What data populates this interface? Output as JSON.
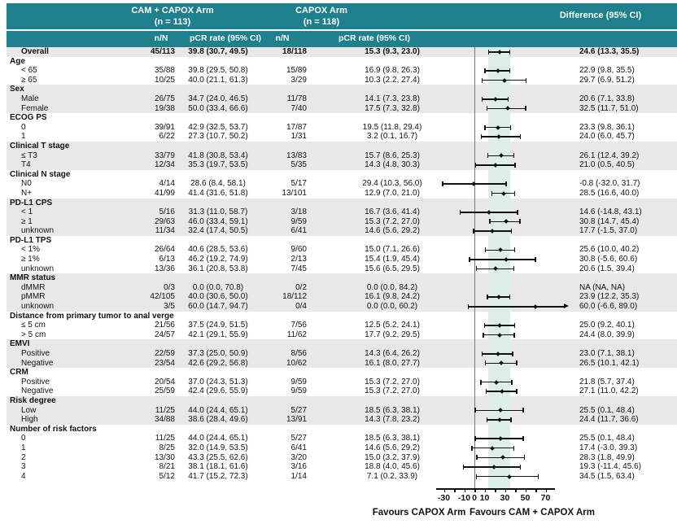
{
  "header": {
    "cam_title": "CAM + CAPOX Arm",
    "cam_n": "(n = 113)",
    "capox_title": "CAPOX Arm",
    "capox_n": "(n = 118)",
    "diff_title": "Difference (95% CI)",
    "sub_nn1": "n/N",
    "sub_pcr1": "pCR rate (95% CI)",
    "sub_nn2": "n/N",
    "sub_pcr2": "pCR rate (95% CI)"
  },
  "colors": {
    "header_teal": "#1E7F8D",
    "stripe_gray": "#E8E8E8",
    "band_green": "#DCEEE6",
    "zero_line_gray": "#777777",
    "ink": "#111111"
  },
  "chart_data": {
    "type": "forest",
    "x_axis": {
      "min": -30,
      "max": 70,
      "tick_step": 10,
      "labeled_ticks": [
        -30,
        -10,
        0,
        10,
        30,
        50,
        70
      ]
    },
    "zero_ref": 0,
    "shaded_band": [
      13.3,
      35.5
    ],
    "favours_left": "Favours CAPOX Arm",
    "favours_right": "Favours CAM + CAPOX Arm",
    "rows": [
      {
        "label": "Overall",
        "type": "data",
        "bold": true,
        "stripe": true,
        "cam_nn": "45/113",
        "cam_pcr": "39.8 (30.7, 49.5)",
        "cap_nn": "18/118",
        "cap_pcr": "15.3 (9.3, 23.0)",
        "diff": "24.6 (13.3, 35.5)",
        "est": 24.6,
        "lo": 13.3,
        "hi": 35.5
      },
      {
        "label": "Age",
        "type": "group",
        "stripe": false
      },
      {
        "label": "< 65",
        "type": "data",
        "stripe": false,
        "cam_nn": "35/88",
        "cam_pcr": "39.8 (29.5, 50.8)",
        "cap_nn": "15/89",
        "cap_pcr": "16.9 (9.8, 26.3)",
        "diff": "22.9 (9.8, 35.5)",
        "est": 22.9,
        "lo": 9.8,
        "hi": 35.5
      },
      {
        "label": "≥ 65",
        "type": "data",
        "stripe": false,
        "cam_nn": "10/25",
        "cam_pcr": "40.0 (21.1, 61.3)",
        "cap_nn": "3/29",
        "cap_pcr": "10.3 (2.2, 27.4)",
        "diff": "29.7 (6.9, 51.2)",
        "est": 29.7,
        "lo": 6.9,
        "hi": 51.2
      },
      {
        "label": "Sex",
        "type": "group",
        "stripe": true
      },
      {
        "label": "Male",
        "type": "data",
        "stripe": true,
        "cam_nn": "26/75",
        "cam_pcr": "34.7 (24.0, 46.5)",
        "cap_nn": "11/78",
        "cap_pcr": "14.1 (7.3, 23.8)",
        "diff": "20.6 (7.1, 33.8)",
        "est": 20.6,
        "lo": 7.1,
        "hi": 33.8
      },
      {
        "label": "Female",
        "type": "data",
        "stripe": true,
        "cam_nn": "19/38",
        "cam_pcr": "50.0 (33.4, 66.6)",
        "cap_nn": "7/40",
        "cap_pcr": "17.5 (7.3, 32.8)",
        "diff": "32.5 (11.7, 51.0)",
        "est": 32.5,
        "lo": 11.7,
        "hi": 51.0
      },
      {
        "label": "ECOG PS",
        "type": "group",
        "stripe": false
      },
      {
        "label": "0",
        "type": "data",
        "stripe": false,
        "cam_nn": "39/91",
        "cam_pcr": "42.9 (32.5, 53.7)",
        "cap_nn": "17/87",
        "cap_pcr": "19.5 (11.8, 29.4)",
        "diff": "23.3 (9.8, 36.1)",
        "est": 23.3,
        "lo": 9.8,
        "hi": 36.1
      },
      {
        "label": "1",
        "type": "data",
        "stripe": false,
        "cam_nn": "6/22",
        "cam_pcr": "27.3 (10.7, 50.2)",
        "cap_nn": "1/31",
        "cap_pcr": "3.2 (0.1, 16.7)",
        "diff": "24.0 (6.0, 45.7)",
        "est": 24.0,
        "lo": 6.0,
        "hi": 45.7
      },
      {
        "label": "Clinical T stage",
        "type": "group",
        "stripe": true
      },
      {
        "label": "≤ T3",
        "type": "data",
        "stripe": true,
        "cam_nn": "33/79",
        "cam_pcr": "41.8 (30.8, 53.4)",
        "cap_nn": "13/83",
        "cap_pcr": "15.7 (8.6, 25.3)",
        "diff": "26.1 (12.4, 39.2)",
        "est": 26.1,
        "lo": 12.4,
        "hi": 39.2
      },
      {
        "label": "T4",
        "type": "data",
        "stripe": true,
        "cam_nn": "12/34",
        "cam_pcr": "35.3 (19.7, 53.5)",
        "cap_nn": "5/35",
        "cap_pcr": "14.3 (4.8, 30.3)",
        "diff": "21.0 (0.5, 40.5)",
        "est": 21.0,
        "lo": 0.5,
        "hi": 40.5
      },
      {
        "label": "Clinical N stage",
        "type": "group",
        "stripe": false
      },
      {
        "label": "N0",
        "type": "data",
        "stripe": false,
        "cam_nn": "4/14",
        "cam_pcr": "28.6 (8.4, 58.1)",
        "cap_nn": "5/17",
        "cap_pcr": "29.4 (10.3, 56.0)",
        "diff": "-0.8 (-32.0, 31.7)",
        "est": -0.8,
        "lo": -32.0,
        "hi": 31.7
      },
      {
        "label": "N+",
        "type": "data",
        "stripe": false,
        "cam_nn": "41/99",
        "cam_pcr": "41.4 (31.6, 51.8)",
        "cap_nn": "13/101",
        "cap_pcr": "12.9 (7.0, 21.0)",
        "diff": "28.5 (16.6, 40.0)",
        "est": 28.5,
        "lo": 16.6,
        "hi": 40.0
      },
      {
        "label": "PD-L1 CPS",
        "type": "group",
        "stripe": true
      },
      {
        "label": "< 1",
        "type": "data",
        "stripe": true,
        "cam_nn": "5/16",
        "cam_pcr": "31.3 (11.0, 58.7)",
        "cap_nn": "3/18",
        "cap_pcr": "16.7 (3.6, 41.4)",
        "diff": "14.6 (-14.8, 43.1)",
        "est": 14.6,
        "lo": -14.8,
        "hi": 43.1
      },
      {
        "label": "≥ 1",
        "type": "data",
        "stripe": true,
        "cam_nn": "29/63",
        "cam_pcr": "46.0 (33.4, 59.1)",
        "cap_nn": "9/59",
        "cap_pcr": "15.3 (7.2, 27.0)",
        "diff": "30.8 (14.7, 45.4)",
        "est": 30.8,
        "lo": 14.7,
        "hi": 45.4
      },
      {
        "label": "unknown",
        "type": "data",
        "stripe": true,
        "cam_nn": "11/34",
        "cam_pcr": "32.4 (17.4, 50.5)",
        "cap_nn": "6/41",
        "cap_pcr": "14.6 (5.6, 29.2)",
        "diff": "17.7 (-1.5, 37.0)",
        "est": 17.7,
        "lo": -1.5,
        "hi": 37.0
      },
      {
        "label": "PD-L1 TPS",
        "type": "group",
        "stripe": false
      },
      {
        "label": "< 1%",
        "type": "data",
        "stripe": false,
        "cam_nn": "26/64",
        "cam_pcr": "40.6 (28.5, 53.6)",
        "cap_nn": "9/60",
        "cap_pcr": "15.0 (7.1, 26.6)",
        "diff": "25.6 (10.0, 40.2)",
        "est": 25.6,
        "lo": 10.0,
        "hi": 40.2
      },
      {
        "label": "≥ 1%",
        "type": "data",
        "stripe": false,
        "cam_nn": "6/13",
        "cam_pcr": "46.2 (19.2, 74.9)",
        "cap_nn": "2/13",
        "cap_pcr": "15.4 (1.9, 45.4)",
        "diff": "30.8 (-5.6, 60.6)",
        "est": 30.8,
        "lo": -5.6,
        "hi": 60.6
      },
      {
        "label": "unknown",
        "type": "data",
        "stripe": false,
        "cam_nn": "13/36",
        "cam_pcr": "36.1 (20.8, 53.8)",
        "cap_nn": "7/45",
        "cap_pcr": "15.6 (6.5, 29.5)",
        "diff": "20.6 (1.5, 39.4)",
        "est": 20.6,
        "lo": 1.5,
        "hi": 39.4
      },
      {
        "label": "MMR status",
        "type": "group",
        "stripe": true
      },
      {
        "label": "dMMR",
        "type": "data",
        "stripe": true,
        "cam_nn": "0/3",
        "cam_pcr": "0.0 (0.0, 70.8)",
        "cap_nn": "0/2",
        "cap_pcr": "0.0 (0.0, 84.2)",
        "diff": "NA (NA, NA)",
        "est": null,
        "lo": null,
        "hi": null
      },
      {
        "label": "pMMR",
        "type": "data",
        "stripe": true,
        "cam_nn": "42/105",
        "cam_pcr": "40.0 (30.6, 50.0)",
        "cap_nn": "18/112",
        "cap_pcr": "16.1 (9.8, 24.2)",
        "diff": "23.9 (12.2, 35.3)",
        "est": 23.9,
        "lo": 12.2,
        "hi": 35.3
      },
      {
        "label": "unknown",
        "type": "data",
        "stripe": true,
        "cam_nn": "3/5",
        "cam_pcr": "60.0 (14.7, 94.7)",
        "cap_nn": "0/4",
        "cap_pcr": "0.0 (0.0, 60.2)",
        "diff": "60.0 (-6.6, 89.0)",
        "est": 60.0,
        "lo": -6.6,
        "hi": 89.0,
        "arrow": true
      },
      {
        "label": "Distance from primary tumor to anal verge",
        "type": "group",
        "stripe": false
      },
      {
        "label": "≤ 5 cm",
        "type": "data",
        "stripe": false,
        "cam_nn": "21/56",
        "cam_pcr": "37.5 (24.9, 51.5)",
        "cap_nn": "7/56",
        "cap_pcr": "12.5 (5.2, 24.1)",
        "diff": "25.0 (9.2, 40.1)",
        "est": 25.0,
        "lo": 9.2,
        "hi": 40.1
      },
      {
        "label": "> 5 cm",
        "type": "data",
        "stripe": false,
        "cam_nn": "24/57",
        "cam_pcr": "42.1 (29.1, 55.9)",
        "cap_nn": "11/62",
        "cap_pcr": "17.7 (9.2, 29.5)",
        "diff": "24.4 (8.0, 39.9)",
        "est": 24.4,
        "lo": 8.0,
        "hi": 39.9
      },
      {
        "label": "EMVI",
        "type": "group",
        "stripe": true
      },
      {
        "label": "Positive",
        "type": "data",
        "stripe": true,
        "cam_nn": "22/59",
        "cam_pcr": "37.3 (25.0, 50.9)",
        "cap_nn": "8/56",
        "cap_pcr": "14.3 (6.4, 26.2)",
        "diff": "23.0 (7.1, 38.1)",
        "est": 23.0,
        "lo": 7.1,
        "hi": 38.1
      },
      {
        "label": "Negative",
        "type": "data",
        "stripe": true,
        "cam_nn": "23/54",
        "cam_pcr": "42.6 (29.2, 56.8)",
        "cap_nn": "10/62",
        "cap_pcr": "16.1 (8.0, 27.7)",
        "diff": "26.5 (10.1, 42.1)",
        "est": 26.5,
        "lo": 10.1,
        "hi": 42.1
      },
      {
        "label": "CRM",
        "type": "group",
        "stripe": false
      },
      {
        "label": "Positive",
        "type": "data",
        "stripe": false,
        "cam_nn": "20/54",
        "cam_pcr": "37.0 (24.3, 51.3)",
        "cap_nn": "9/59",
        "cap_pcr": "15.3 (7.2, 27.0)",
        "diff": "21.8 (5.7, 37.4)",
        "est": 21.8,
        "lo": 5.7,
        "hi": 37.4
      },
      {
        "label": "Negative",
        "type": "data",
        "stripe": false,
        "cam_nn": "25/59",
        "cam_pcr": "42.4 (29.6, 55.9)",
        "cap_nn": "9/59",
        "cap_pcr": "15.3 (7.2, 27.0)",
        "diff": "27.1 (11.0, 42.2)",
        "est": 27.1,
        "lo": 11.0,
        "hi": 42.2
      },
      {
        "label": "Risk degree",
        "type": "group",
        "stripe": true
      },
      {
        "label": "Low",
        "type": "data",
        "stripe": true,
        "cam_nn": "11/25",
        "cam_pcr": "44.0 (24.4, 65.1)",
        "cap_nn": "5/27",
        "cap_pcr": "18.5 (6.3, 38.1)",
        "diff": "25.5 (0.1, 48.4)",
        "est": 25.5,
        "lo": 0.1,
        "hi": 48.4
      },
      {
        "label": "High",
        "type": "data",
        "stripe": true,
        "cam_nn": "34/88",
        "cam_pcr": "38.6 (28.4, 49.6)",
        "cap_nn": "13/91",
        "cap_pcr": "14.3 (7.8, 23.2)",
        "diff": "24.4 (11.7, 36.6)",
        "est": 24.4,
        "lo": 11.7,
        "hi": 36.6
      },
      {
        "label": "Number of risk factors",
        "type": "group",
        "stripe": false
      },
      {
        "label": "0",
        "type": "data",
        "stripe": false,
        "cam_nn": "11/25",
        "cam_pcr": "44.0 (24.4, 65.1)",
        "cap_nn": "5/27",
        "cap_pcr": "18.5 (6.3, 38.1)",
        "diff": "25.5 (0.1, 48.4)",
        "est": 25.5,
        "lo": 0.1,
        "hi": 48.4
      },
      {
        "label": "1",
        "type": "data",
        "stripe": false,
        "cam_nn": "8/25",
        "cam_pcr": "32.0 (14.9, 53.5)",
        "cap_nn": "6/41",
        "cap_pcr": "14.6 (5.6, 29.2)",
        "diff": "17.4 (-3.0, 39.3)",
        "est": 17.4,
        "lo": -3.0,
        "hi": 39.3
      },
      {
        "label": "2",
        "type": "data",
        "stripe": false,
        "cam_nn": "13/30",
        "cam_pcr": "43.3 (25.5, 62.6)",
        "cap_nn": "3/20",
        "cap_pcr": "15.0 (3.2, 37.9)",
        "diff": "28.3 (1.8, 49.9)",
        "est": 28.3,
        "lo": 1.8,
        "hi": 49.9
      },
      {
        "label": "3",
        "type": "data",
        "stripe": false,
        "cam_nn": "8/21",
        "cam_pcr": "38.1 (18.1, 61.6)",
        "cap_nn": "3/16",
        "cap_pcr": "18.8 (4.0, 45.6)",
        "diff": "19.3 (-11.4, 45.6)",
        "est": 19.3,
        "lo": -11.4,
        "hi": 45.6
      },
      {
        "label": "4",
        "type": "data",
        "stripe": false,
        "cam_nn": "5/12",
        "cam_pcr": "41.7 (15.2, 72.3)",
        "cap_nn": "1/14",
        "cap_pcr": "7.1 (0.2, 33.9)",
        "diff": "34.5 (1.5, 63.4)",
        "est": 34.5,
        "lo": 1.5,
        "hi": 63.4
      }
    ]
  }
}
